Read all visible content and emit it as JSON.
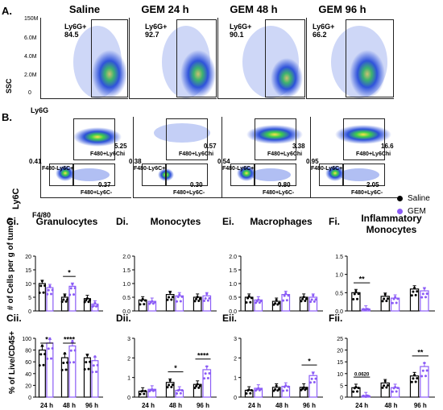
{
  "panel_labels": {
    "A": "A.",
    "B": "B."
  },
  "flow_a": {
    "ylabel": "SSC",
    "xlabel": "Ly6G",
    "ytick_top": "150M",
    "yticks": [
      "6.0M",
      "4.0M",
      "2.0M",
      "0"
    ],
    "panels": [
      {
        "title": "Saline",
        "gate_label": "Ly6G+",
        "value": "84.5"
      },
      {
        "title": "GEM 24 h",
        "gate_label": "Ly6G+",
        "value": "92.7"
      },
      {
        "title": "GEM 48 h",
        "gate_label": "Ly6G+",
        "value": "90.1"
      },
      {
        "title": "GEM 96 h",
        "gate_label": "Ly6G+",
        "value": "66.2"
      }
    ]
  },
  "flow_b": {
    "ylabel": "Ly6C",
    "xlabel": "F4/80",
    "gate_names": {
      "hi": "F480+Ly6Chi",
      "neg_c": "F480-Ly6C+",
      "neg_lo": "F480+Ly6C-"
    },
    "panels": [
      {
        "hi": "5.25",
        "neg": "0.41",
        "lo": "0.37"
      },
      {
        "hi": "0.57",
        "neg": "0.38",
        "lo": "0.30"
      },
      {
        "hi": "3.38",
        "neg": "0.54",
        "lo": "0.80"
      },
      {
        "hi": "16.6",
        "neg": "0.95",
        "lo": "2.05"
      }
    ]
  },
  "legend": {
    "saline": "Saline",
    "gem": "GEM"
  },
  "colors": {
    "saline": "#000000",
    "gem": "#8b5cf6"
  },
  "row_labels": {
    "top": "# of Cells per g of tumor",
    "bottom": "% of Live/CD45+"
  },
  "column_titles": [
    {
      "sub": "Ci.",
      "title": "Granulocytes"
    },
    {
      "sub": "Di.",
      "title": "Monocytes"
    },
    {
      "sub": "Ei.",
      "title": "Macrophages"
    },
    {
      "sub": "Fi.",
      "title": "Inflammatory Monocytes"
    }
  ],
  "bottom_subs": [
    "Cii.",
    "Dii.",
    "Eii.",
    "Fii."
  ],
  "chart_data": [
    {
      "type": "bar",
      "id": "Ci",
      "categories": [
        "24 h",
        "48 h",
        "96 h"
      ],
      "series": [
        {
          "name": "Saline",
          "values": [
            10,
            5,
            4.5
          ]
        },
        {
          "name": "GEM",
          "values": [
            8.5,
            9,
            2.5
          ]
        }
      ],
      "ylim": [
        0,
        20
      ],
      "yticks": [
        "0",
        "5",
        "10",
        "15",
        "20"
      ],
      "significance": [
        {
          "group": "48 h",
          "label": "*"
        }
      ]
    },
    {
      "type": "bar",
      "id": "Di",
      "categories": [
        "24 h",
        "48 h",
        "96 h"
      ],
      "series": [
        {
          "name": "Saline",
          "values": [
            0.4,
            0.6,
            0.5
          ]
        },
        {
          "name": "GEM",
          "values": [
            0.35,
            0.55,
            0.55
          ]
        }
      ],
      "ylim": [
        0,
        2
      ],
      "yticks": [
        "0.0",
        "0.5",
        "1.0",
        "1.5",
        "2.0"
      ],
      "significance": []
    },
    {
      "type": "bar",
      "id": "Ei",
      "categories": [
        "24 h",
        "48 h",
        "96 h"
      ],
      "series": [
        {
          "name": "Saline",
          "values": [
            0.5,
            0.35,
            0.5
          ]
        },
        {
          "name": "GEM",
          "values": [
            0.4,
            0.6,
            0.5
          ]
        }
      ],
      "ylim": [
        0,
        2
      ],
      "yticks": [
        "0.0",
        "0.5",
        "1.0",
        "1.5",
        "2.0"
      ],
      "significance": []
    },
    {
      "type": "bar",
      "id": "Fi",
      "categories": [
        "24 h",
        "48 h",
        "96 h"
      ],
      "series": [
        {
          "name": "Saline",
          "values": [
            0.5,
            0.4,
            0.6
          ]
        },
        {
          "name": "GEM",
          "values": [
            0.05,
            0.35,
            0.55
          ]
        }
      ],
      "ylim": [
        0,
        1.5
      ],
      "yticks": [
        "0.0",
        "0.5",
        "1.0",
        "1.5"
      ],
      "significance": [
        {
          "group": "24 h",
          "label": "**"
        }
      ]
    },
    {
      "type": "bar",
      "id": "Cii",
      "categories": [
        "24 h",
        "48 h",
        "96 h"
      ],
      "series": [
        {
          "name": "Saline",
          "values": [
            80,
            67,
            67
          ]
        },
        {
          "name": "GEM",
          "values": [
            92,
            87,
            62
          ]
        }
      ],
      "ylim": [
        0,
        100
      ],
      "yticks": [
        "0",
        "20",
        "40",
        "60",
        "80",
        "100"
      ],
      "significance": [
        {
          "group": "24 h",
          "label": "*"
        },
        {
          "group": "48 h",
          "label": "****"
        }
      ]
    },
    {
      "type": "bar",
      "id": "Dii",
      "categories": [
        "24 h",
        "48 h",
        "96 h"
      ],
      "series": [
        {
          "name": "Saline",
          "values": [
            0.3,
            0.75,
            0.65
          ]
        },
        {
          "name": "GEM",
          "values": [
            0.4,
            0.35,
            1.4
          ]
        }
      ],
      "ylim": [
        0,
        3
      ],
      "yticks": [
        "0",
        "1",
        "2",
        "3"
      ],
      "significance": [
        {
          "group": "48 h",
          "label": "*"
        },
        {
          "group": "96 h",
          "label": "****"
        }
      ]
    },
    {
      "type": "bar",
      "id": "Eii",
      "categories": [
        "24 h",
        "48 h",
        "96 h"
      ],
      "series": [
        {
          "name": "Saline",
          "values": [
            0.35,
            0.5,
            0.5
          ]
        },
        {
          "name": "GEM",
          "values": [
            0.45,
            0.55,
            1.1
          ]
        }
      ],
      "ylim": [
        0,
        3
      ],
      "yticks": [
        "0",
        "1",
        "2",
        "3"
      ],
      "significance": [
        {
          "group": "96 h",
          "label": "*"
        }
      ]
    },
    {
      "type": "bar",
      "id": "Fii",
      "categories": [
        "24 h",
        "48 h",
        "96 h"
      ],
      "series": [
        {
          "name": "Saline",
          "values": [
            4,
            6,
            9
          ]
        },
        {
          "name": "GEM",
          "values": [
            0.5,
            4,
            13
          ]
        }
      ],
      "ylim": [
        0,
        25
      ],
      "yticks": [
        "0",
        "5",
        "10",
        "15",
        "20",
        "25"
      ],
      "significance": [
        {
          "group": "24 h",
          "label": "0.0620"
        },
        {
          "group": "96 h",
          "label": "**"
        }
      ]
    }
  ]
}
